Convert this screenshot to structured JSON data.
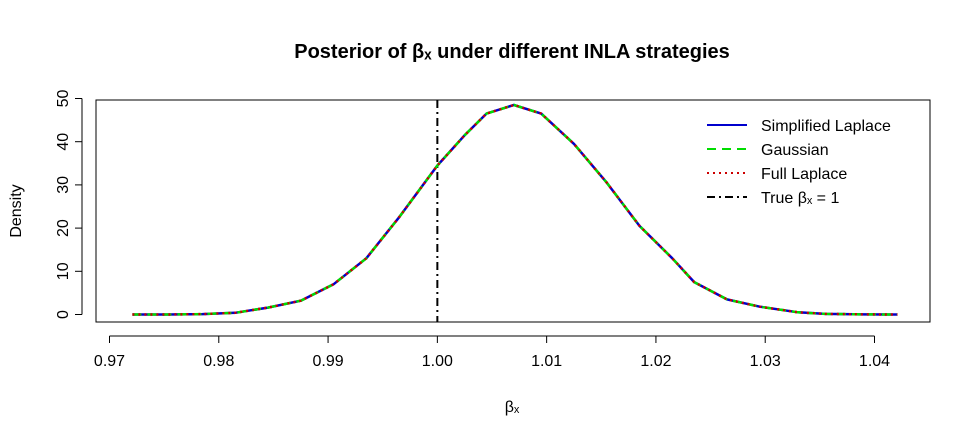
{
  "chart_data": {
    "type": "line",
    "title": "Posterior of βₓ under different INLA strategies",
    "xlabel": "βₓ",
    "ylabel": "Density",
    "xlim": [
      0.97,
      1.04
    ],
    "ylim": [
      0,
      50
    ],
    "x_ticks": [
      "0.97",
      "0.98",
      "0.99",
      "1.00",
      "1.01",
      "1.02",
      "1.03",
      "1.04"
    ],
    "x_tick_values": [
      0.97,
      0.98,
      0.99,
      1.0,
      1.01,
      1.02,
      1.03,
      1.04
    ],
    "y_ticks": [
      "0",
      "10",
      "20",
      "30",
      "40",
      "50"
    ],
    "y_tick_values": [
      0,
      10,
      20,
      30,
      40,
      50
    ],
    "grid": false,
    "legend_position": "top-right",
    "x": [
      0.9721,
      0.9753,
      0.9785,
      0.9815,
      0.9845,
      0.9875,
      0.9905,
      0.9935,
      0.9965,
      1.0,
      1.0025,
      1.0045,
      1.007,
      1.0095,
      1.0125,
      1.0155,
      1.0185,
      1.0215,
      1.0235,
      1.0265,
      1.0295,
      1.033,
      1.0355,
      1.039,
      1.0421
    ],
    "series": [
      {
        "name": "Simplified Laplace",
        "color": "#0000CD",
        "dash": "solid",
        "values": [
          0.0,
          0.0,
          0.1,
          0.4,
          1.6,
          3.2,
          7.0,
          13.0,
          22.5,
          34.5,
          41.5,
          46.5,
          48.5,
          46.5,
          39.5,
          30.5,
          20.5,
          13.0,
          7.5,
          3.5,
          1.8,
          0.5,
          0.15,
          0.02,
          0.0
        ]
      },
      {
        "name": "Gaussian",
        "color": "#00DD00",
        "dash": "dashed",
        "values": [
          0.0,
          0.0,
          0.1,
          0.4,
          1.6,
          3.2,
          7.0,
          13.0,
          22.5,
          34.5,
          41.5,
          46.5,
          48.5,
          46.5,
          39.5,
          30.5,
          20.5,
          13.0,
          7.5,
          3.5,
          1.8,
          0.5,
          0.15,
          0.02,
          0.0
        ]
      },
      {
        "name": "Full Laplace",
        "color": "#CC0000",
        "dash": "dotted",
        "values": [
          0.0,
          0.0,
          0.1,
          0.4,
          1.6,
          3.2,
          7.0,
          13.0,
          22.5,
          34.5,
          41.5,
          46.5,
          48.5,
          46.5,
          39.5,
          30.5,
          20.5,
          13.0,
          7.5,
          3.5,
          1.8,
          0.5,
          0.15,
          0.02,
          0.0
        ]
      }
    ],
    "reference_line": {
      "name": "True βₓ = 1",
      "x": 1.0,
      "color": "#000000",
      "dash": "dotdash"
    }
  }
}
